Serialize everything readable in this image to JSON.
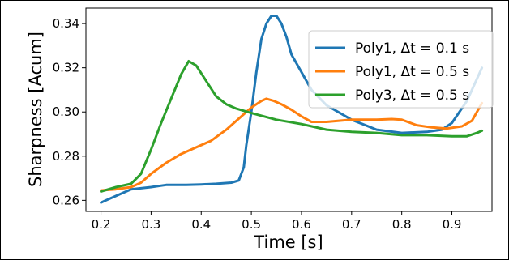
{
  "chart_data": {
    "type": "line",
    "title": "",
    "xlabel": "Time [s]",
    "ylabel": "Sharpness [Acum]",
    "xlim": [
      0.17,
      0.98
    ],
    "ylim": [
      0.255,
      0.347
    ],
    "x_ticks": [
      "0.2",
      "0.3",
      "0.4",
      "0.5",
      "0.6",
      "0.7",
      "0.8",
      "0.9"
    ],
    "y_ticks": [
      "0.26",
      "0.28",
      "0.30",
      "0.32",
      "0.34"
    ],
    "grid": false,
    "legend_position": "top-right",
    "series": [
      {
        "name": "Poly1, Δt = 0.1 s",
        "color": "#1f77b4",
        "x": [
          0.2,
          0.23,
          0.26,
          0.3,
          0.33,
          0.37,
          0.4,
          0.43,
          0.46,
          0.475,
          0.485,
          0.49,
          0.5,
          0.51,
          0.52,
          0.53,
          0.54,
          0.55,
          0.56,
          0.57,
          0.58,
          0.6,
          0.62,
          0.65,
          0.7,
          0.75,
          0.8,
          0.85,
          0.88,
          0.9,
          0.93,
          0.96
        ],
        "y": [
          0.259,
          0.262,
          0.265,
          0.266,
          0.267,
          0.267,
          0.2672,
          0.2675,
          0.268,
          0.269,
          0.275,
          0.285,
          0.3,
          0.318,
          0.333,
          0.34,
          0.3435,
          0.3435,
          0.34,
          0.334,
          0.326,
          0.318,
          0.31,
          0.303,
          0.2965,
          0.292,
          0.2905,
          0.291,
          0.292,
          0.295,
          0.305,
          0.32
        ]
      },
      {
        "name": "Poly1, Δt = 0.5 s",
        "color": "#ff7f0e",
        "x": [
          0.2,
          0.23,
          0.26,
          0.28,
          0.3,
          0.33,
          0.36,
          0.39,
          0.42,
          0.45,
          0.48,
          0.5,
          0.52,
          0.53,
          0.545,
          0.56,
          0.58,
          0.6,
          0.62,
          0.65,
          0.7,
          0.75,
          0.78,
          0.8,
          0.83,
          0.86,
          0.89,
          0.92,
          0.94,
          0.96
        ],
        "y": [
          0.2645,
          0.265,
          0.266,
          0.268,
          0.272,
          0.277,
          0.281,
          0.284,
          0.287,
          0.292,
          0.298,
          0.302,
          0.305,
          0.306,
          0.305,
          0.3035,
          0.301,
          0.298,
          0.2955,
          0.2955,
          0.2965,
          0.2965,
          0.2968,
          0.2965,
          0.294,
          0.293,
          0.2925,
          0.2935,
          0.296,
          0.304
        ]
      },
      {
        "name": "Poly3, Δt = 0.5 s",
        "color": "#2ca02c",
        "x": [
          0.2,
          0.23,
          0.26,
          0.28,
          0.3,
          0.32,
          0.34,
          0.36,
          0.375,
          0.39,
          0.41,
          0.43,
          0.45,
          0.47,
          0.5,
          0.55,
          0.6,
          0.65,
          0.7,
          0.75,
          0.8,
          0.85,
          0.9,
          0.93,
          0.95,
          0.96
        ],
        "y": [
          0.264,
          0.266,
          0.2675,
          0.272,
          0.283,
          0.295,
          0.306,
          0.317,
          0.323,
          0.321,
          0.314,
          0.307,
          0.3035,
          0.3015,
          0.2995,
          0.2965,
          0.2945,
          0.292,
          0.291,
          0.2905,
          0.2895,
          0.2895,
          0.289,
          0.289,
          0.2905,
          0.2915
        ]
      }
    ]
  }
}
